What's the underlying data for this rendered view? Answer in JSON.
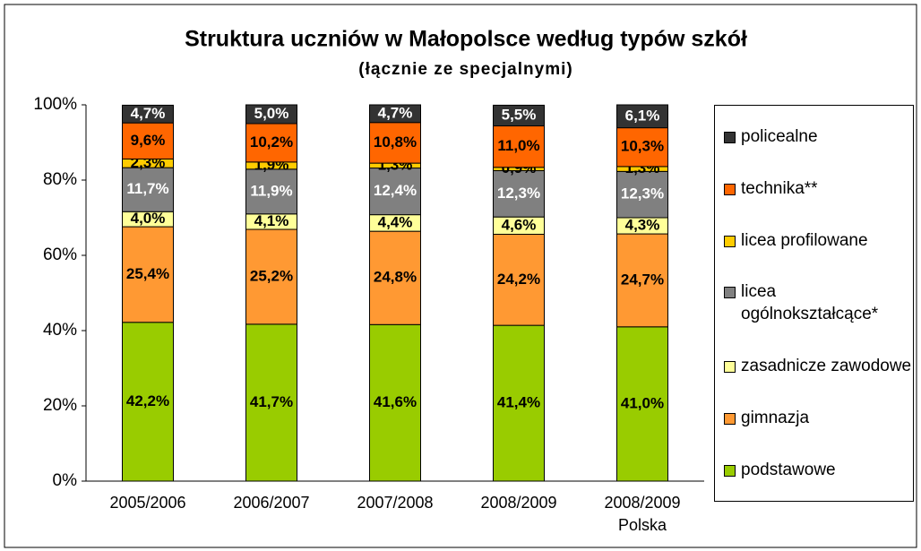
{
  "chart_data": {
    "type": "stacked_bar",
    "title": "Struktura uczniów w Małopolsce według typów szkół",
    "subtitle": "(łącznie ze specjalnymi)",
    "categories": [
      "2005/2006",
      "2006/2007",
      "2007/2008",
      "2008/2009",
      [
        "2008/2009",
        "Polska"
      ]
    ],
    "ylim": [
      0,
      100
    ],
    "yticks": [
      {
        "value": 0,
        "label": "0%"
      },
      {
        "value": 20,
        "label": "20%"
      },
      {
        "value": 40,
        "label": "40%"
      },
      {
        "value": 60,
        "label": "60%"
      },
      {
        "value": 80,
        "label": "80%"
      },
      {
        "value": 100,
        "label": "100%"
      }
    ],
    "grid": false,
    "legend": "right",
    "series": [
      {
        "name": "podstawowe",
        "color": "#99cc00",
        "label_color": "#000000",
        "values": [
          42.2,
          41.7,
          41.6,
          41.4,
          41.0
        ],
        "value_labels": [
          "42,2%",
          "41,7%",
          "41,6%",
          "41,4%",
          "41,0%"
        ]
      },
      {
        "name": "gimnazja",
        "color": "#ff9933",
        "label_color": "#000000",
        "values": [
          25.4,
          25.2,
          24.8,
          24.2,
          24.7
        ],
        "value_labels": [
          "25,4%",
          "25,2%",
          "24,8%",
          "24,2%",
          "24,7%"
        ]
      },
      {
        "name": "zasadnicze zawodowe",
        "color": "#ffff99",
        "label_color": "#000000",
        "values": [
          4.0,
          4.1,
          4.4,
          4.6,
          4.3
        ],
        "value_labels": [
          "4,0%",
          "4,1%",
          "4,4%",
          "4,6%",
          "4,3%"
        ]
      },
      {
        "name": "licea ogólnokształcące*",
        "color": "#808080",
        "label_color": "#ffffff",
        "values": [
          11.7,
          11.9,
          12.4,
          12.3,
          12.3
        ],
        "value_labels": [
          "11,7%",
          "11,9%",
          "12,4%",
          "12,3%",
          "12,3%"
        ]
      },
      {
        "name": "licea profilowane",
        "color": "#ffcc00",
        "label_color": "#000000",
        "values": [
          2.3,
          1.9,
          1.3,
          0.9,
          1.3
        ],
        "value_labels": [
          "2,3%",
          "1,9%",
          "1,3%",
          "0,9%",
          "1,3%"
        ]
      },
      {
        "name": "technika**",
        "color": "#ff6600",
        "label_color": "#000000",
        "values": [
          9.6,
          10.2,
          10.8,
          11.0,
          10.3
        ],
        "value_labels": [
          "9,6%",
          "10,2%",
          "10,8%",
          "11,0%",
          "10,3%"
        ]
      },
      {
        "name": "policealne",
        "color": "#333333",
        "label_color": "#ffffff",
        "values": [
          4.7,
          5.0,
          4.7,
          5.5,
          6.1
        ],
        "value_labels": [
          "4,7%",
          "5,0%",
          "4,7%",
          "5,5%",
          "6,1%"
        ]
      }
    ]
  }
}
